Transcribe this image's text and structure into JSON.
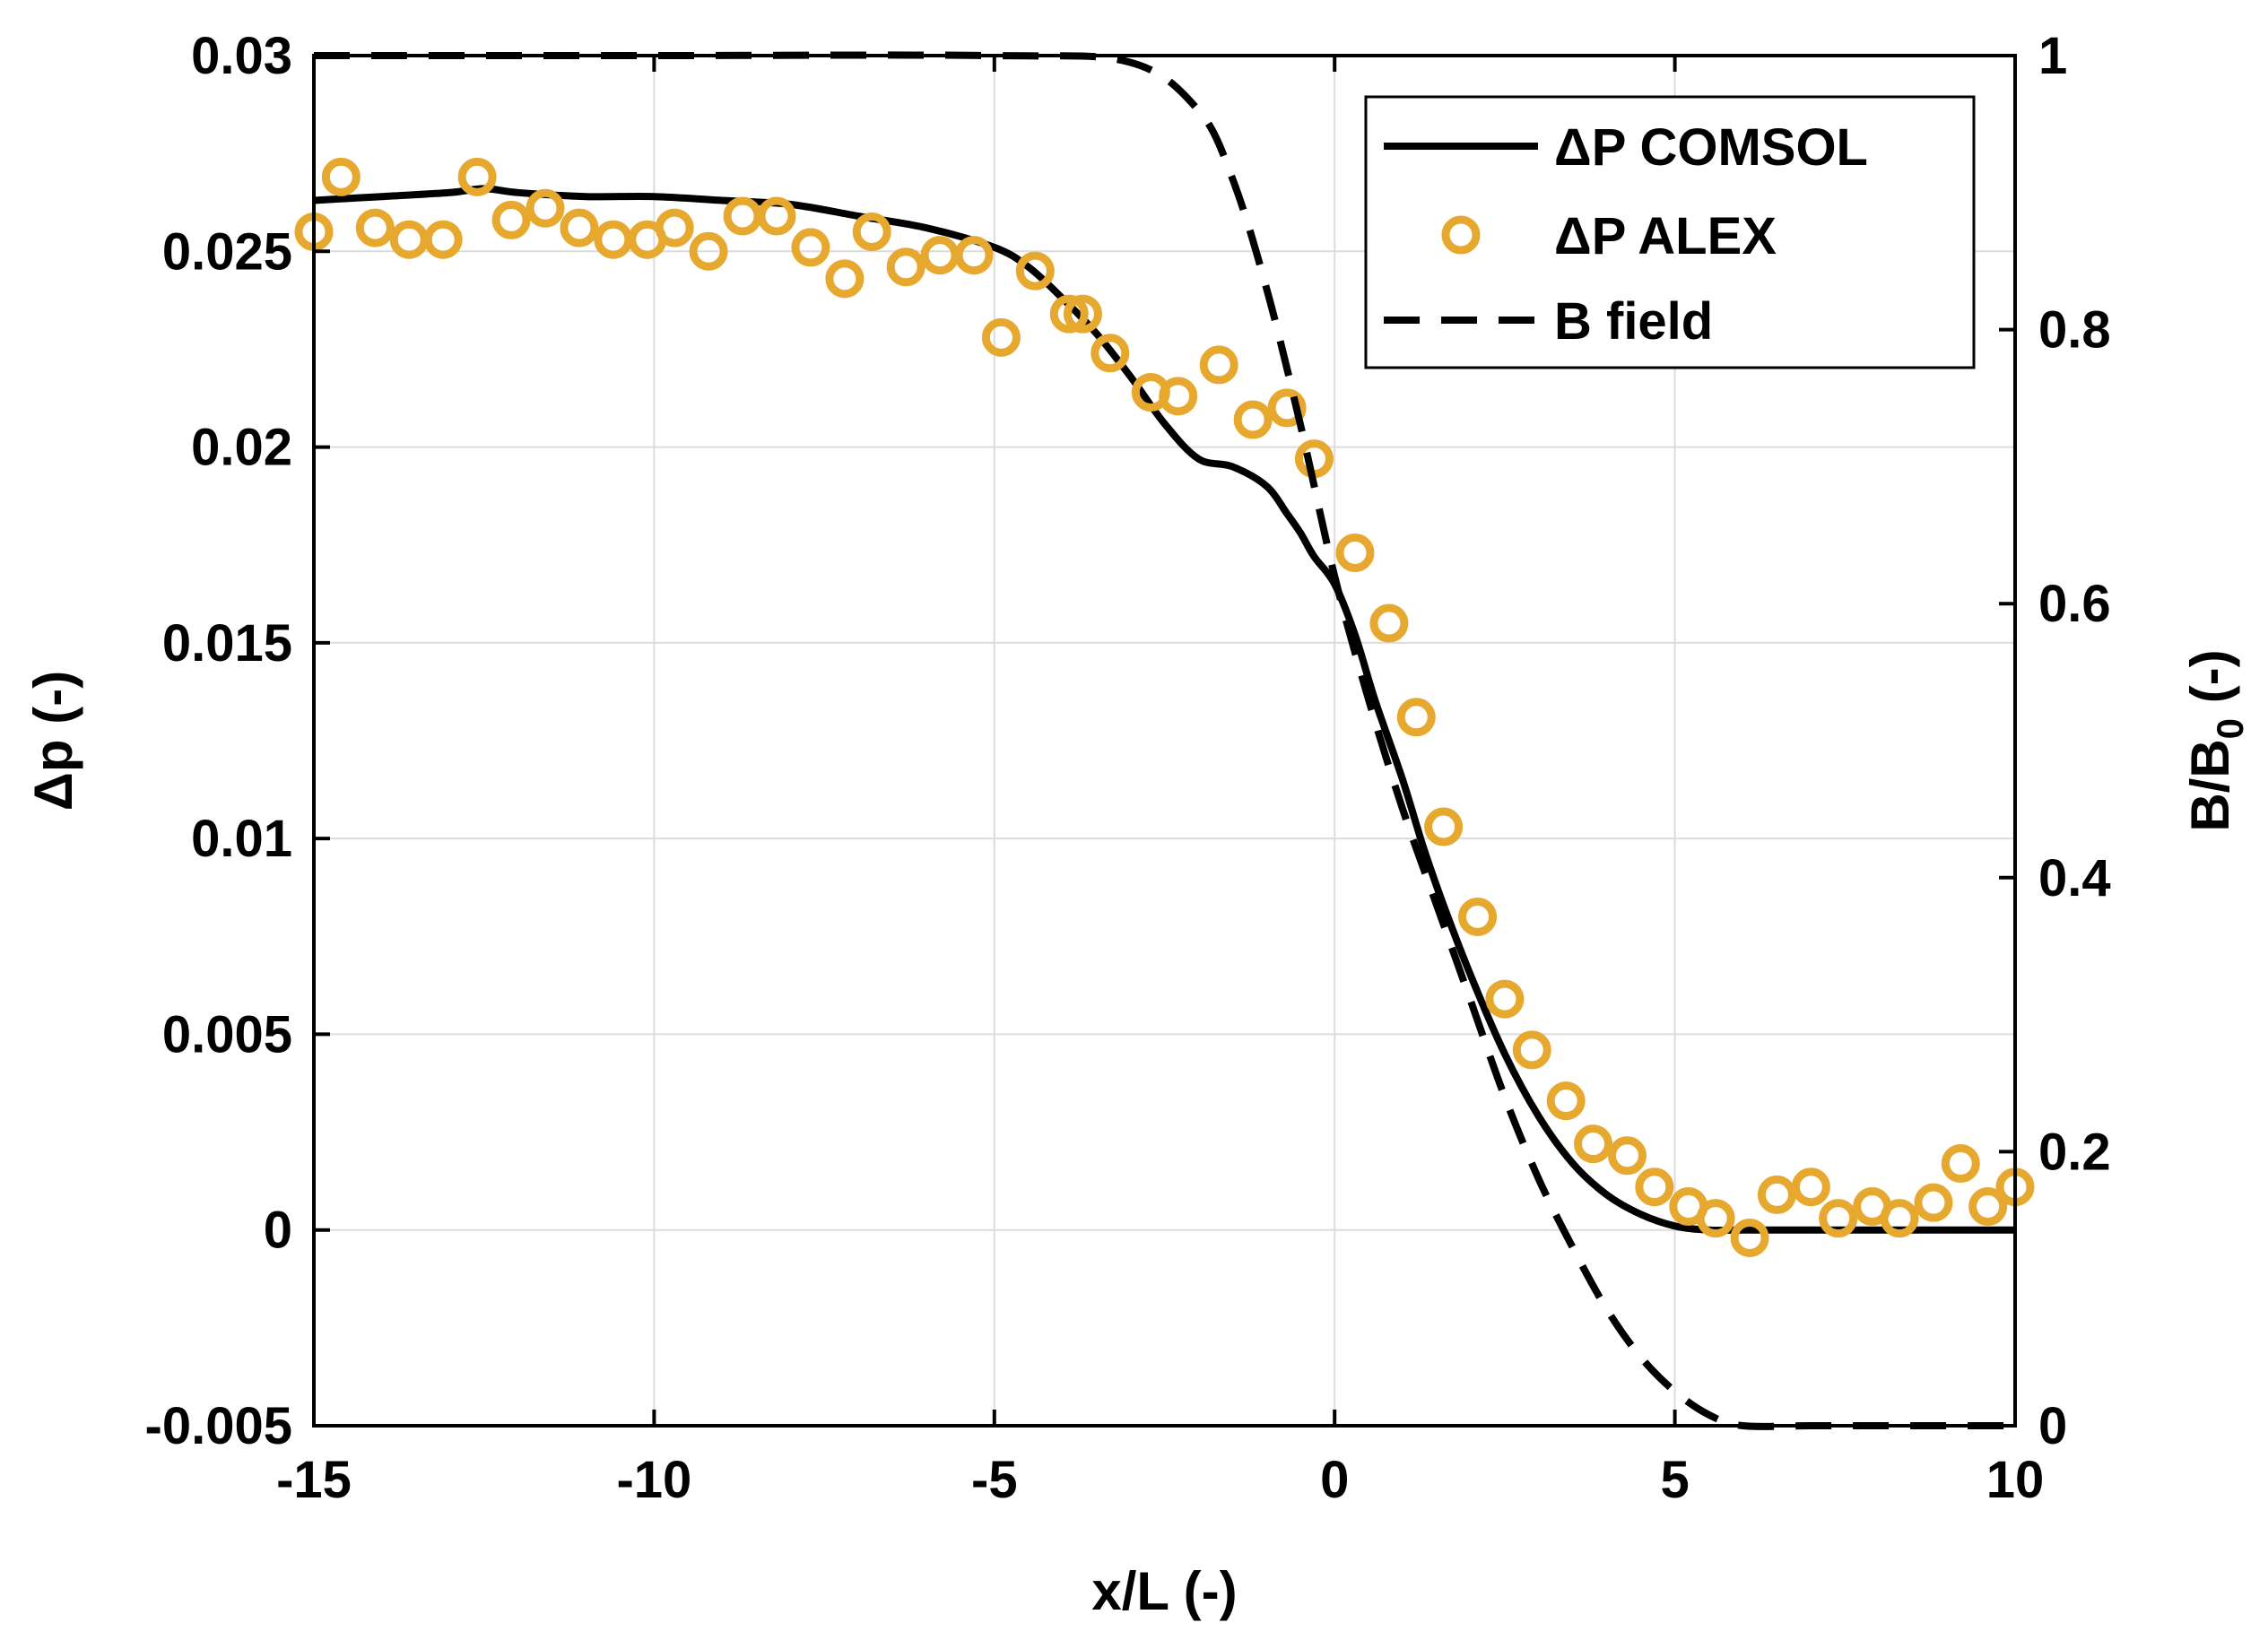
{
  "chart_data": {
    "type": "line",
    "title": "",
    "xlabel": "x/L (-)",
    "ylabel_left": "Δp (-)",
    "ylabel_right_main": "B/B",
    "ylabel_right_sub": "0",
    "ylabel_right_suffix": " (-)",
    "xlim": [
      -15,
      10
    ],
    "ylim_left": [
      -0.005,
      0.03
    ],
    "ylim_right": [
      0,
      1
    ],
    "grid": true,
    "legend_position": "top-right",
    "x_ticks": [
      -15,
      -10,
      -5,
      0,
      5,
      10
    ],
    "x_tick_labels": [
      "-15",
      "-10",
      "-5",
      "0",
      "5",
      "10"
    ],
    "y_left_ticks": [
      -0.005,
      0,
      0.005,
      0.01,
      0.015,
      0.02,
      0.025,
      0.03
    ],
    "y_left_tick_labels": [
      "-0.005",
      "0",
      "0.005",
      "0.01",
      "0.015",
      "0.02",
      "0.025",
      "0.03"
    ],
    "y_right_ticks": [
      0,
      0.2,
      0.4,
      0.6,
      0.8,
      1
    ],
    "y_right_tick_labels": [
      "0",
      "0.2",
      "0.4",
      "0.6",
      "0.8",
      "1"
    ],
    "series": [
      {
        "name": "ΔP COMSOL",
        "style": "solid",
        "axis": "left",
        "color": "#000000",
        "x": [
          -15,
          -14,
          -13,
          -12.5,
          -12,
          -11,
          -10,
          -9,
          -8,
          -7,
          -6,
          -5,
          -4.5,
          -4,
          -3.5,
          -3,
          -2.5,
          -2,
          -1.5,
          -1,
          -0.7,
          -0.5,
          -0.3,
          0,
          0.3,
          0.6,
          1,
          1.3,
          1.6,
          2,
          2.5,
          3,
          3.5,
          4,
          4.5,
          5,
          5.5,
          6,
          7,
          8,
          9,
          10
        ],
        "y": [
          0.0263,
          0.0264,
          0.0265,
          0.0266,
          0.0265,
          0.0264,
          0.0264,
          0.0263,
          0.0262,
          0.0259,
          0.0256,
          0.0251,
          0.0246,
          0.0238,
          0.0229,
          0.0218,
          0.0206,
          0.0197,
          0.0195,
          0.019,
          0.0183,
          0.0178,
          0.0172,
          0.0165,
          0.0152,
          0.0135,
          0.0115,
          0.0098,
          0.0083,
          0.0065,
          0.0045,
          0.0029,
          0.0017,
          0.0009,
          0.0004,
          0.0001,
          0.0,
          0.0,
          0.0,
          0.0,
          0.0,
          0.0
        ]
      },
      {
        "name": "ΔP ALEX",
        "style": "markers",
        "marker": "circle",
        "axis": "left",
        "color": "#E6A82E",
        "x": [
          -15,
          -14.6,
          -14.1,
          -13.6,
          -13.1,
          -12.6,
          -12.1,
          -11.6,
          -11.1,
          -10.6,
          -10.1,
          -9.7,
          -9.2,
          -8.7,
          -8.2,
          -7.7,
          -7.2,
          -6.8,
          -6.3,
          -5.8,
          -5.3,
          -4.9,
          -4.4,
          -3.9,
          -3.7,
          -3.3,
          -2.7,
          -2.3,
          -1.7,
          -1.2,
          -0.7,
          -0.3,
          0.3,
          0.8,
          1.2,
          1.6,
          2.1,
          2.5,
          2.9,
          3.4,
          3.8,
          4.3,
          4.7,
          5.2,
          5.6,
          6.1,
          6.5,
          7.0,
          7.4,
          7.9,
          8.3,
          8.8,
          9.2,
          9.6,
          10.0
        ],
        "y": [
          0.0255,
          0.0269,
          0.0256,
          0.0253,
          0.0253,
          0.0269,
          0.0258,
          0.0261,
          0.0256,
          0.0253,
          0.0253,
          0.0256,
          0.025,
          0.0259,
          0.0259,
          0.0251,
          0.0243,
          0.0255,
          0.0246,
          0.0249,
          0.0249,
          0.0228,
          0.0245,
          0.0234,
          0.0234,
          0.0224,
          0.0214,
          0.0213,
          0.0221,
          0.0207,
          0.021,
          0.0197,
          0.0173,
          0.0155,
          0.0131,
          0.0103,
          0.008,
          0.0059,
          0.0046,
          0.0033,
          0.0022,
          0.0019,
          0.0011,
          0.0006,
          0.0003,
          -0.0002,
          0.0009,
          0.0011,
          0.0003,
          0.0006,
          0.0003,
          0.0007,
          0.0017,
          0.0006,
          0.0011
        ]
      },
      {
        "name": "B field",
        "style": "dashed",
        "axis": "right",
        "color": "#000000",
        "x": [
          -15,
          -10,
          -5,
          -3,
          -2,
          -1.5,
          -1,
          -0.5,
          0,
          0.5,
          1,
          1.5,
          2,
          2.5,
          3,
          3.5,
          4,
          4.5,
          5,
          5.5,
          6,
          7,
          8,
          9,
          10
        ],
        "y": [
          1.0,
          1.0,
          1.0,
          0.995,
          0.96,
          0.91,
          0.83,
          0.73,
          0.62,
          0.53,
          0.45,
          0.38,
          0.31,
          0.24,
          0.18,
          0.13,
          0.085,
          0.05,
          0.025,
          0.008,
          0.0,
          0.0,
          0.0,
          0.0,
          0.0
        ]
      }
    ]
  }
}
